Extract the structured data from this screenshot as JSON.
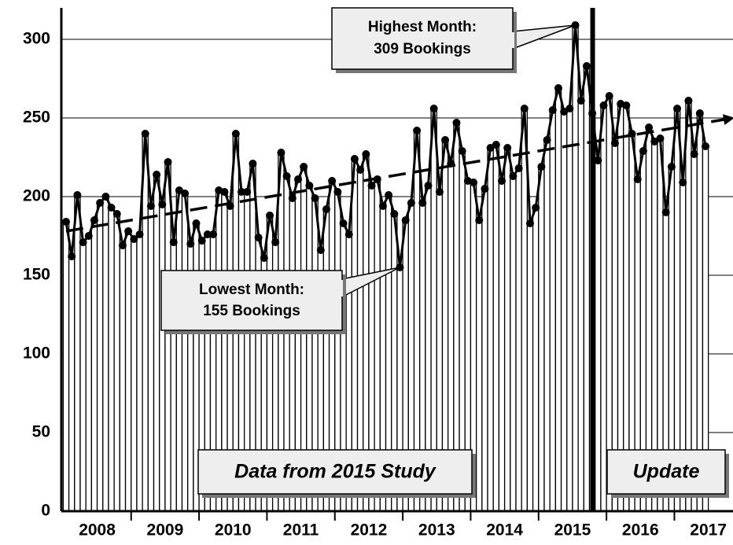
{
  "chart_data": {
    "type": "bar",
    "categories": [
      "2008",
      null,
      null,
      null,
      null,
      null,
      null,
      null,
      null,
      null,
      null,
      null,
      "2009",
      null,
      null,
      null,
      null,
      null,
      null,
      null,
      null,
      null,
      null,
      null,
      "2010",
      null,
      null,
      null,
      null,
      null,
      null,
      null,
      null,
      null,
      null,
      null,
      "2011",
      null,
      null,
      null,
      null,
      null,
      null,
      null,
      null,
      null,
      null,
      null,
      "2012",
      null,
      null,
      null,
      null,
      null,
      null,
      null,
      null,
      null,
      null,
      null,
      "2013",
      null,
      null,
      null,
      null,
      null,
      null,
      null,
      null,
      null,
      null,
      null,
      "2014",
      null,
      null,
      null,
      null,
      null,
      null,
      null,
      null,
      null,
      null,
      null,
      "2015",
      null,
      null,
      null,
      null,
      null,
      null,
      null,
      null,
      null,
      null,
      null,
      "2016",
      null,
      null,
      null,
      null,
      null,
      null,
      null,
      null,
      null,
      null,
      null,
      "2017",
      null,
      null,
      null,
      null,
      null
    ],
    "values": [
      184,
      162,
      201,
      171,
      175,
      185,
      196,
      200,
      193,
      189,
      169,
      178,
      173,
      176,
      240,
      194,
      214,
      195,
      222,
      171,
      204,
      202,
      170,
      183,
      172,
      176,
      176,
      204,
      203,
      194,
      240,
      203,
      203,
      221,
      174,
      161,
      188,
      171,
      228,
      213,
      199,
      211,
      219,
      207,
      199,
      166,
      192,
      210,
      203,
      183,
      176,
      224,
      217,
      227,
      207,
      211,
      194,
      201,
      189,
      155,
      185,
      196,
      242,
      196,
      207,
      256,
      203,
      236,
      221,
      247,
      229,
      210,
      209,
      185,
      205,
      231,
      233,
      210,
      231,
      213,
      218,
      256,
      183,
      193,
      219,
      236,
      255,
      269,
      254,
      256,
      309,
      261,
      283,
      253,
      223,
      258,
      264,
      234,
      259,
      258,
      240,
      211,
      229,
      244,
      235,
      237,
      190,
      219,
      256,
      209,
      261,
      227,
      253,
      232
    ],
    "trendline": [
      178,
      247
    ],
    "ylim": [
      0,
      320
    ],
    "yticks": [
      0,
      50,
      100,
      150,
      200,
      250,
      300
    ],
    "grid": true,
    "annotations": {
      "highest": [
        "Highest Month:",
        "309 Bookings"
      ],
      "lowest": [
        "Lowest Month:",
        "155 Bookings"
      ],
      "study": "Data from 2015 Study",
      "update": "Update"
    }
  }
}
